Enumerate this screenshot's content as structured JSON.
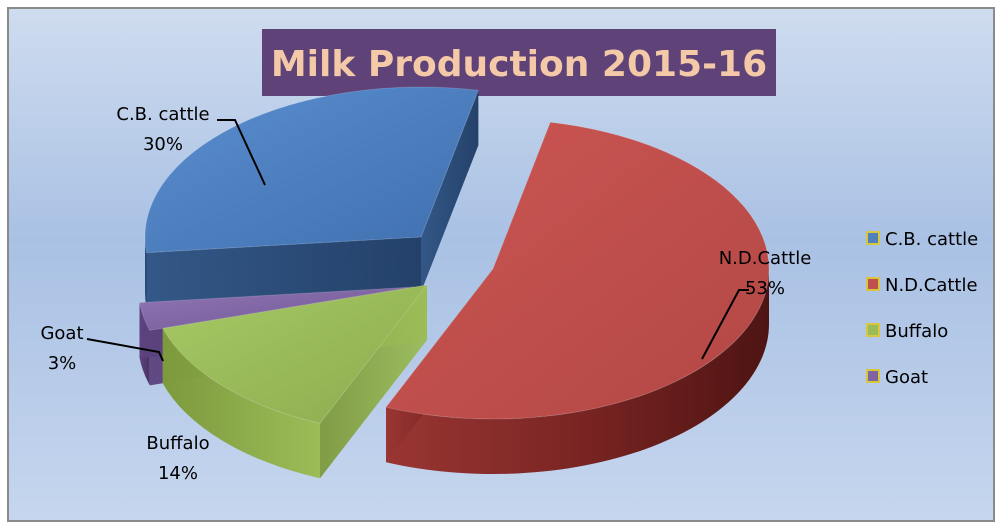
{
  "chart_data": {
    "type": "pie",
    "title": "Milk Production 2015-16",
    "categories": [
      "C.B. cattle",
      "N.D.Cattle",
      "Buffalo",
      "Goat"
    ],
    "values": [
      30,
      53,
      14,
      3
    ],
    "data_labels": [
      "30%",
      "53%",
      "14%",
      "3%"
    ],
    "colors": [
      "#4f81bd",
      "#c0504d",
      "#9bbb59",
      "#8064a2"
    ],
    "legend_position": "right",
    "style": "3D exploded pie"
  }
}
